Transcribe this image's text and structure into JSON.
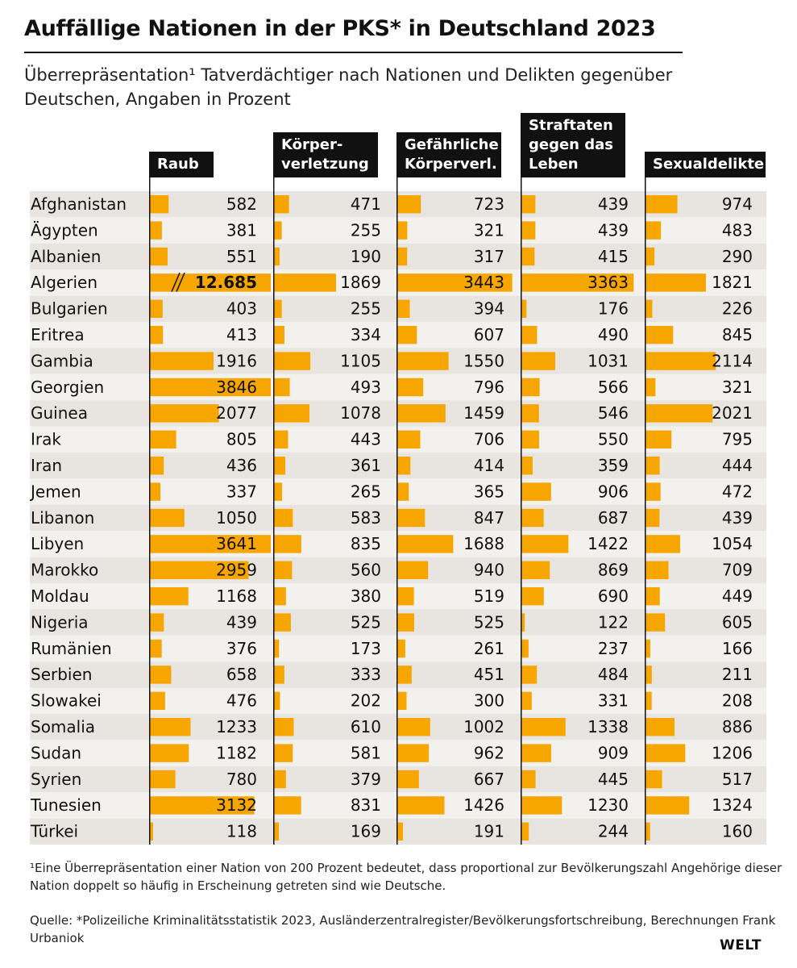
{
  "title": "Auffällige Nationen in der PKS* in Deutschland 2023",
  "subtitle": "Überrepräsentation¹ Tatverdächtiger nach Nationen und Delikten gegenüber Deutschen, Angaben in Prozent",
  "footnote": "¹Eine Überrepräsentation einer Nation von 200 Prozent bedeutet, dass proportional zur Bevölkerungszahl Angehörige dieser Nation doppelt so häufig in Erscheinung getreten sind wie Deutsche.",
  "source": "Quelle: *Polizeiliche Kriminalitätsstatistik 2023, Ausländerzentralregister/Bevölkerungsfortschreibung, Berechnungen Frank Urbaniok",
  "logo": "WELT",
  "colors": {
    "bar": "#f7a600",
    "row_even": "#e8e5e0",
    "row_odd": "#f3f1ee",
    "header": "#111111"
  },
  "chart_data": {
    "type": "bar",
    "categories": [
      "Afghanistan",
      "Ägypten",
      "Albanien",
      "Algerien",
      "Bulgarien",
      "Eritrea",
      "Gambia",
      "Georgien",
      "Guinea",
      "Irak",
      "Iran",
      "Jemen",
      "Libanon",
      "Libyen",
      "Marokko",
      "Moldau",
      "Nigeria",
      "Rumänien",
      "Serbien",
      "Slowakei",
      "Somalia",
      "Sudan",
      "Syrien",
      "Tunesien",
      "Türkei"
    ],
    "series": [
      {
        "name": "Raub",
        "label_lines": [
          "Raub"
        ],
        "values": [
          582,
          381,
          551,
          12685,
          403,
          413,
          1916,
          3846,
          2077,
          805,
          436,
          337,
          1050,
          3641,
          2959,
          1168,
          439,
          376,
          658,
          476,
          1233,
          1182,
          780,
          3132,
          118
        ]
      },
      {
        "name": "Körperverletzung",
        "label_lines": [
          "Körper-",
          "verletzung"
        ],
        "values": [
          471,
          255,
          190,
          1869,
          255,
          334,
          1105,
          493,
          1078,
          443,
          361,
          265,
          583,
          835,
          560,
          380,
          525,
          173,
          333,
          202,
          610,
          581,
          379,
          831,
          169
        ]
      },
      {
        "name": "Gefährliche Körperverl.",
        "label_lines": [
          "Gefährliche",
          "Körperverl."
        ],
        "values": [
          723,
          321,
          317,
          3443,
          394,
          607,
          1550,
          796,
          1459,
          706,
          414,
          365,
          847,
          1688,
          940,
          519,
          525,
          261,
          451,
          300,
          1002,
          962,
          667,
          1426,
          191
        ]
      },
      {
        "name": "Straftaten gegen das Leben",
        "label_lines": [
          "Straftaten",
          "gegen das",
          "Leben"
        ],
        "values": [
          439,
          439,
          415,
          3363,
          176,
          490,
          1031,
          566,
          546,
          550,
          359,
          906,
          687,
          1422,
          869,
          690,
          122,
          237,
          484,
          331,
          1338,
          909,
          445,
          1230,
          244
        ]
      },
      {
        "name": "Sexualdelikte",
        "label_lines": [
          "Sexualdelikte"
        ],
        "values": [
          974,
          483,
          290,
          1821,
          226,
          845,
          2114,
          321,
          2021,
          795,
          444,
          472,
          439,
          1054,
          709,
          449,
          605,
          166,
          211,
          208,
          886,
          1206,
          517,
          1324,
          160
        ]
      }
    ],
    "value_labels": [
      [
        "582",
        "381",
        "551",
        "12.685",
        "403",
        "413",
        "1916",
        "3846",
        "2077",
        "805",
        "436",
        "337",
        "1050",
        "3641",
        "2959",
        "1168",
        "439",
        "376",
        "658",
        "476",
        "1233",
        "1182",
        "780",
        "3132",
        "118"
      ],
      [
        "471",
        "255",
        "190",
        "1869",
        "255",
        "334",
        "1105",
        "493",
        "1078",
        "443",
        "361",
        "265",
        "583",
        "835",
        "560",
        "380",
        "525",
        "173",
        "333",
        "202",
        "610",
        "581",
        "379",
        "831",
        "169"
      ],
      [
        "723",
        "321",
        "317",
        "3443",
        "394",
        "607",
        "1550",
        "796",
        "1459",
        "706",
        "414",
        "365",
        "847",
        "1688",
        "940",
        "519",
        "525",
        "261",
        "451",
        "300",
        "1002",
        "962",
        "667",
        "1426",
        "191"
      ],
      [
        "439",
        "439",
        "415",
        "3363",
        "176",
        "490",
        "1031",
        "566",
        "546",
        "550",
        "359",
        "906",
        "687",
        "1422",
        "869",
        "690",
        "122",
        "237",
        "484",
        "331",
        "1338",
        "909",
        "445",
        "1230",
        "244"
      ],
      [
        "974",
        "483",
        "290",
        "1821",
        "226",
        "845",
        "2114",
        "321",
        "2021",
        "795",
        "444",
        "472",
        "439",
        "1054",
        "709",
        "449",
        "605",
        "166",
        "211",
        "208",
        "886",
        "1206",
        "517",
        "1324",
        "160"
      ]
    ],
    "axis_max": 3500,
    "truncated": [
      {
        "series": 0,
        "category": 3
      }
    ]
  }
}
